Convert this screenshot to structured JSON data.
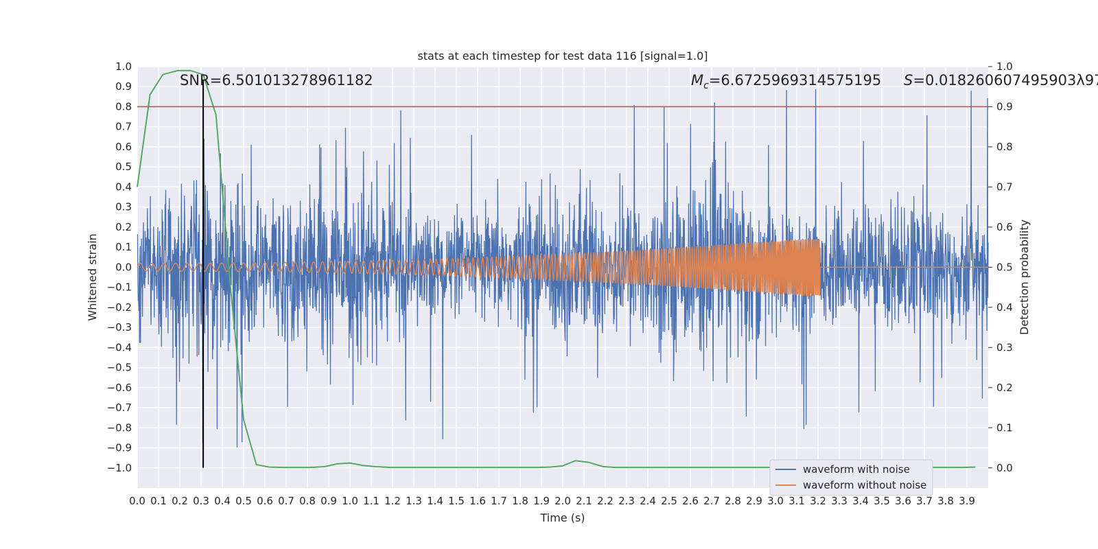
{
  "chart_data": {
    "type": "line",
    "title": "stats at each timestep for test data 116 [signal=1.0]",
    "xlabel": "Time (s)",
    "ylabel": "Whitened strain",
    "y2label": "Detection probability",
    "xlim": [
      0.0,
      4.0
    ],
    "ylim": [
      -1.1,
      1.0
    ],
    "y2lim": [
      -0.05,
      1.0
    ],
    "x_ticks": [
      "0.0",
      "0.1",
      "0.2",
      "0.3",
      "0.4",
      "0.5",
      "0.6",
      "0.7",
      "0.8",
      "0.9",
      "1.0",
      "1.1",
      "1.2",
      "1.3",
      "1.4",
      "1.5",
      "1.6",
      "1.7",
      "1.8",
      "1.9",
      "2.0",
      "2.1",
      "2.2",
      "2.3",
      "2.4",
      "2.5",
      "2.6",
      "2.7",
      "2.8",
      "2.9",
      "3.0",
      "3.1",
      "3.2",
      "3.3",
      "3.4",
      "3.5",
      "3.6",
      "3.7",
      "3.8",
      "3.9"
    ],
    "y_ticks": [
      "−1.0",
      "−0.9",
      "−0.8",
      "−0.7",
      "−0.6",
      "−0.5",
      "−0.4",
      "−0.3",
      "−0.2",
      "−0.1",
      "0.0",
      "0.1",
      "0.2",
      "0.3",
      "0.4",
      "0.5",
      "0.6",
      "0.7",
      "0.8",
      "0.9",
      "1.0"
    ],
    "y2_ticks": [
      "0.0",
      "0.1",
      "0.2",
      "0.3",
      "0.4",
      "0.5",
      "0.6",
      "0.7",
      "0.8",
      "0.9",
      "1.0"
    ],
    "grid": true,
    "legend_position": "lower-right",
    "annotations": {
      "snr": "SNR=6.501013278961182",
      "mc_label": "M",
      "mc_sub": "c",
      "mc_value": "=6.6725969314575195",
      "s_label": "S",
      "s_value": "=0.018260607495903λ97"
    },
    "threshold_y2": 0.9,
    "marker_x": 0.31,
    "series": [
      {
        "name": "waveform with noise",
        "color": "#4c72b0",
        "axis": "left",
        "kind": "noise",
        "amplitude_envelope": [
          0.35,
          0.55,
          0.9
        ]
      },
      {
        "name": "waveform without noise",
        "color": "#dd8452",
        "axis": "left",
        "kind": "chirp",
        "start_x": 0.0,
        "end_x": 3.21,
        "start_amp": 0.02,
        "end_amp": 0.15
      },
      {
        "name": "",
        "color": "#55a868",
        "axis": "right",
        "x": [
          0.0,
          0.06,
          0.12,
          0.19,
          0.25,
          0.31,
          0.37,
          0.44,
          0.5,
          0.56,
          0.62,
          0.69,
          0.75,
          0.81,
          0.88,
          0.94,
          1.0,
          1.06,
          1.12,
          1.19,
          1.25,
          1.31,
          1.37,
          1.44,
          1.5,
          1.56,
          1.62,
          1.69,
          1.75,
          1.81,
          1.88,
          1.94,
          2.0,
          2.06,
          2.12,
          2.19,
          2.25,
          2.31,
          2.37,
          2.44,
          2.5,
          2.56,
          2.62,
          2.69,
          2.75,
          2.81,
          2.88,
          2.94,
          3.0,
          3.06,
          3.12,
          3.19,
          3.25,
          3.31,
          3.37,
          3.44,
          3.5,
          3.56,
          3.62,
          3.69,
          3.75,
          3.81,
          3.88,
          3.94
        ],
        "y": [
          0.7,
          0.93,
          0.98,
          0.99,
          0.99,
          0.98,
          0.88,
          0.44,
          0.12,
          0.008,
          0.002,
          0.001,
          0.001,
          0.001,
          0.003,
          0.01,
          0.012,
          0.006,
          0.003,
          0.001,
          0.001,
          0.001,
          0.001,
          0.001,
          0.001,
          0.001,
          0.001,
          0.001,
          0.001,
          0.001,
          0.001,
          0.002,
          0.005,
          0.018,
          0.014,
          0.003,
          0.001,
          0.001,
          0.001,
          0.001,
          0.001,
          0.001,
          0.001,
          0.001,
          0.001,
          0.001,
          0.001,
          0.001,
          0.001,
          0.001,
          0.001,
          0.001,
          0.001,
          0.001,
          0.001,
          0.001,
          0.001,
          0.001,
          0.001,
          0.001,
          0.001,
          0.001,
          0.001,
          0.002
        ]
      },
      {
        "name": "",
        "color": "#c44e52",
        "axis": "right",
        "kind": "hline",
        "y": 0.9
      }
    ]
  }
}
